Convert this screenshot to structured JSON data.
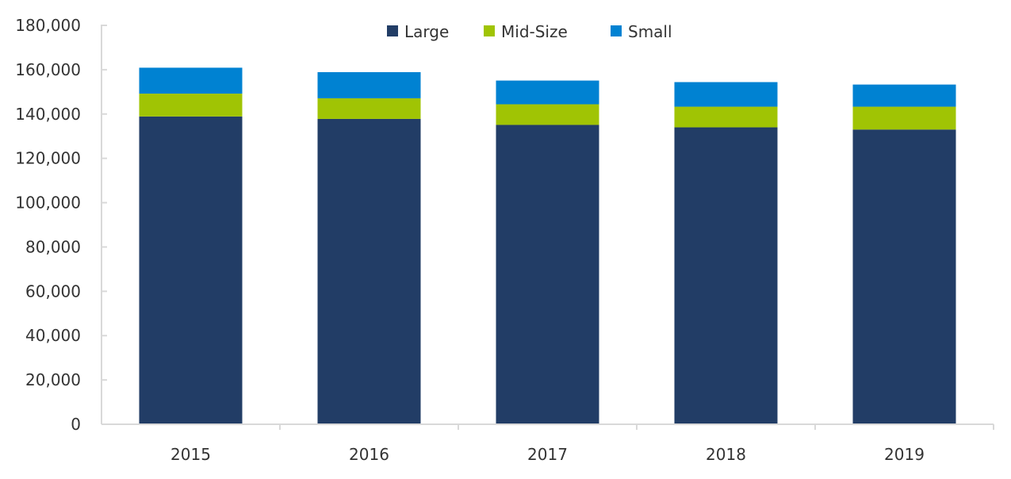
{
  "chart_data": {
    "type": "bar",
    "stacked": true,
    "categories": [
      "2015",
      "2016",
      "2017",
      "2018",
      "2019"
    ],
    "series": [
      {
        "name": "Large",
        "color": "#223d66",
        "values": [
          138900,
          137800,
          135100,
          134000,
          133000
        ]
      },
      {
        "name": "Mid-Size",
        "color": "#a0c404",
        "values": [
          10300,
          9300,
          9300,
          9300,
          10300
        ]
      },
      {
        "name": "Small",
        "color": "#0082d2",
        "values": [
          11700,
          11800,
          10700,
          11100,
          10000
        ]
      }
    ],
    "ylim": [
      0,
      180000
    ],
    "yticks": [
      "0",
      "20,000",
      "40,000",
      "60,000",
      "80,000",
      "100,000",
      "120,000",
      "140,000",
      "160,000",
      "180,000"
    ],
    "grid": false,
    "legend": "top-center",
    "xlabel": "",
    "ylabel": "",
    "title": ""
  }
}
